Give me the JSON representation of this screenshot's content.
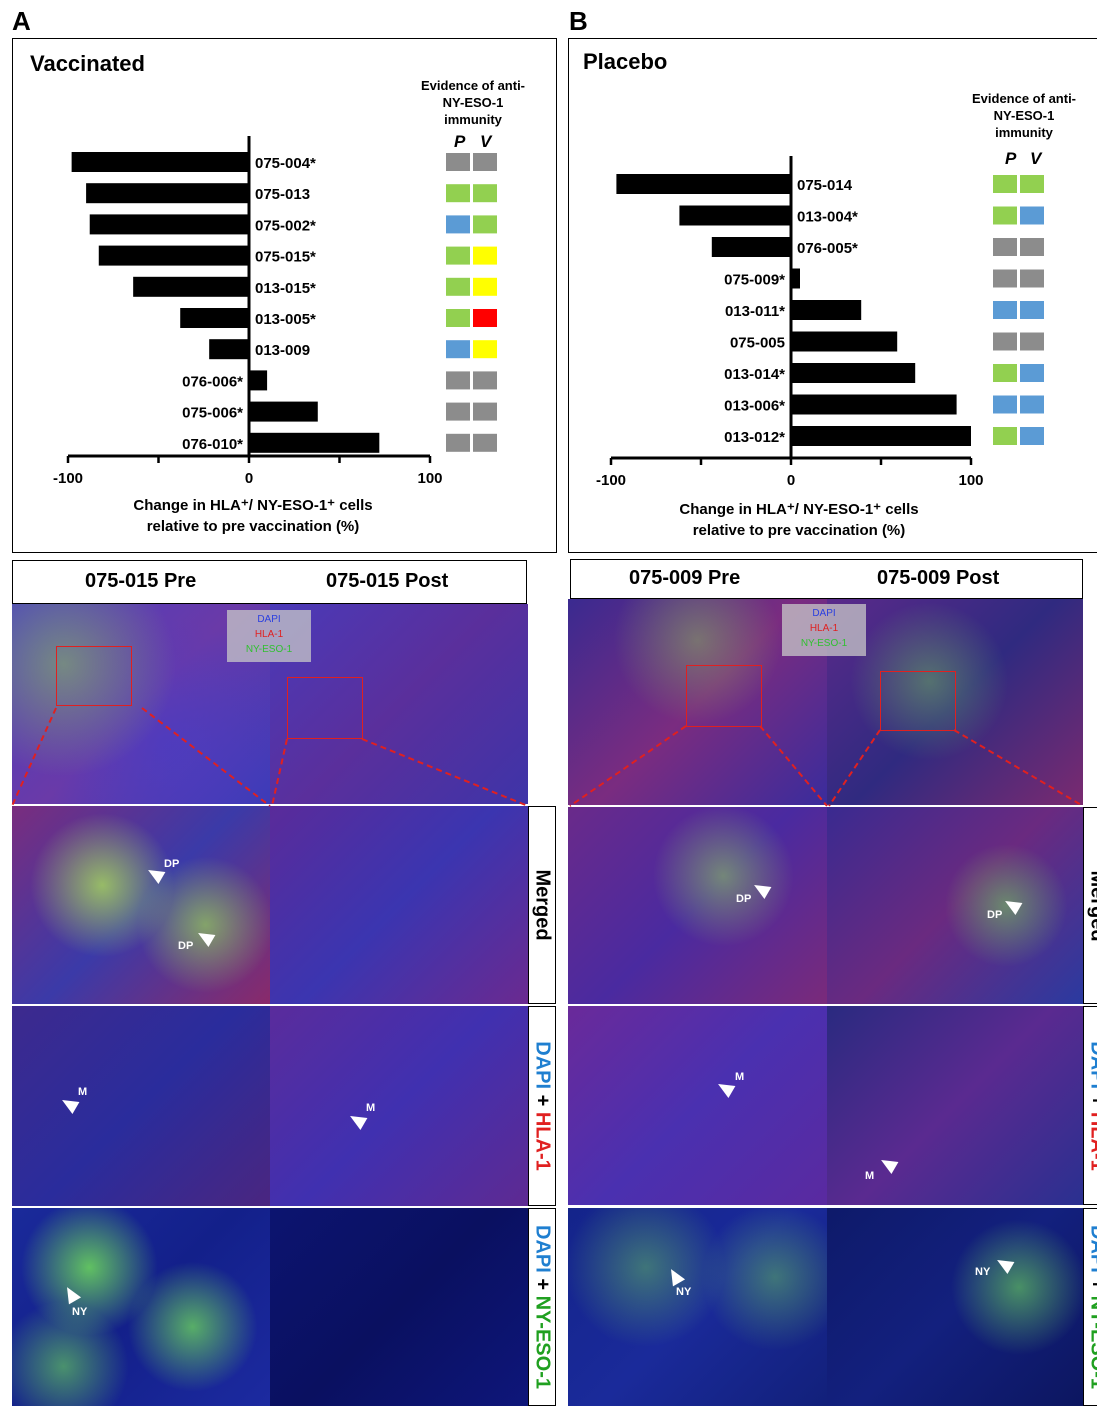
{
  "panels": {
    "a_letter": "A",
    "b_letter": "B"
  },
  "chart_data": [
    {
      "type": "bar",
      "orientation": "horizontal",
      "title": "Vaccinated",
      "categories": [
        "075-004*",
        "075-013",
        "075-002*",
        "075-015*",
        "013-015*",
        "013-005*",
        "013-009",
        "076-006*",
        "075-006*",
        "076-010*"
      ],
      "values": [
        -98,
        -90,
        -88,
        -83,
        -64,
        -38,
        -22,
        10,
        38,
        72
      ],
      "xlim": [
        -100,
        100
      ],
      "xticks": [
        "-100",
        "0",
        "100"
      ],
      "xlabel_line1": "Change in HLA⁺/ NY-ESO-1⁺ cells",
      "xlabel_line2": "relative to pre vaccination (%)",
      "evidence_header": [
        "Evidence of anti-",
        "NY-ESO-1",
        "immunity"
      ],
      "evidence_cols": [
        "P",
        "V"
      ],
      "evidence": [
        [
          "gray",
          "gray"
        ],
        [
          "green",
          "green"
        ],
        [
          "blue",
          "green"
        ],
        [
          "green",
          "yellow"
        ],
        [
          "green",
          "yellow"
        ],
        [
          "green",
          "red"
        ],
        [
          "blue",
          "yellow"
        ],
        [
          "gray",
          "gray"
        ],
        [
          "gray",
          "gray"
        ],
        [
          "gray",
          "gray"
        ]
      ]
    },
    {
      "type": "bar",
      "orientation": "horizontal",
      "title": "Placebo",
      "categories": [
        "075-014",
        "013-004*",
        "076-005*",
        "075-009*",
        "013-011*",
        "075-005",
        "013-014*",
        "013-006*",
        "013-012*"
      ],
      "values": [
        -97,
        -62,
        -44,
        5,
        39,
        59,
        69,
        92,
        100
      ],
      "xlim": [
        -100,
        100
      ],
      "xticks": [
        "-100",
        "0",
        "100"
      ],
      "xlabel_line1": "Change in HLA⁺/ NY-ESO-1⁺ cells",
      "xlabel_line2": "relative to pre vaccination (%)",
      "evidence_header": [
        "Evidence of anti-",
        "NY-ESO-1",
        "immunity"
      ],
      "evidence_cols": [
        "P",
        "V"
      ],
      "evidence": [
        [
          "green",
          "green"
        ],
        [
          "green",
          "blue"
        ],
        [
          "gray",
          "gray"
        ],
        [
          "gray",
          "gray"
        ],
        [
          "blue",
          "blue"
        ],
        [
          "gray",
          "gray"
        ],
        [
          "green",
          "blue"
        ],
        [
          "blue",
          "blue"
        ],
        [
          "green",
          "blue"
        ]
      ]
    }
  ],
  "colors": {
    "gray": "#8c8c8c",
    "green": "#92d050",
    "blue": "#5b9bd5",
    "yellow": "#ffff00",
    "red": "#ff0000",
    "bar": "#000000"
  },
  "images": {
    "a_pre": "075-015 Pre",
    "a_post": "075-015 Post",
    "b_pre": "075-009 Pre",
    "b_post": "075-009 Post",
    "legend": [
      "DAPI",
      "HLA-1",
      "NY-ESO-1"
    ],
    "row_merged": "Merged",
    "row_dapi": "DAPI",
    "row_plus": " + ",
    "row_hla": "HLA-1",
    "row_ny": "NY-ESO-1",
    "arrow_dp": "DP",
    "arrow_m": "M",
    "arrow_ny": "NY"
  }
}
